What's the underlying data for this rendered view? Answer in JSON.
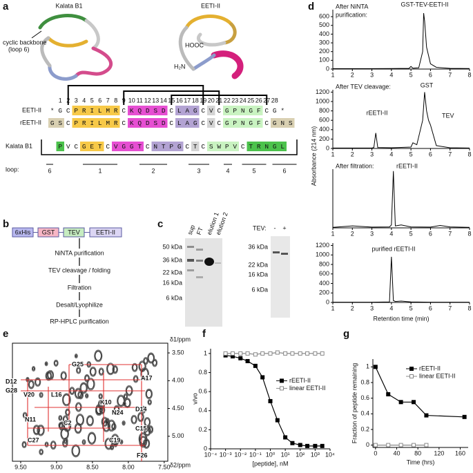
{
  "panel_labels": [
    "a",
    "b",
    "c",
    "d",
    "e",
    "f",
    "g"
  ],
  "structures": {
    "titles": [
      "Kalata B1",
      "EETI-II"
    ],
    "callout": [
      "cyclic backbone",
      "(loop 6)"
    ],
    "termini": [
      "HOOC",
      "H₂N"
    ]
  },
  "alignment": {
    "numbers": [
      1,
      2,
      3,
      4,
      5,
      6,
      7,
      8,
      9,
      10,
      11,
      12,
      13,
      14,
      15,
      16,
      17,
      18,
      19,
      20,
      21,
      22,
      23,
      24,
      25,
      26,
      27,
      28
    ],
    "rows": [
      {
        "name": "EETI-II",
        "segments": [
          "*",
          "G",
          "C",
          "PRILMR",
          "C",
          "KQDSD",
          "C",
          "LAG",
          "C",
          "V",
          "C",
          "GPNGF",
          "C",
          "G",
          "*"
        ],
        "colors": [
          "#ffffff",
          "#ffffff",
          "#ffffff",
          "#f7c948",
          "#ffffff",
          "#e64fd2",
          "#ffffff",
          "#b3a3d3",
          "#ffffff",
          "#d4d4d4",
          "#ffffff",
          "#c9f3c1",
          "#ffffff",
          "#ffffff",
          "#ffffff"
        ]
      },
      {
        "name": "rEETI-II",
        "segments": [
          "GS",
          "C",
          "PRILMR",
          "C",
          "KQDSD",
          "C",
          "LAG",
          "C",
          "V",
          "C",
          "GPNGF",
          "C",
          "GNS"
        ],
        "colors": [
          "#d9d0b2",
          "#ffffff",
          "#f7c948",
          "#ffffff",
          "#e64fd2",
          "#ffffff",
          "#b3a3d3",
          "#ffffff",
          "#d4d4d4",
          "#ffffff",
          "#c9f3c1",
          "#ffffff",
          "#d9d0b2"
        ]
      },
      {
        "name": "Kalata B1",
        "segments": [
          "P",
          "V",
          "C",
          "GET",
          "C",
          "VGGT",
          "C",
          "NTPG",
          "C",
          "T",
          "C",
          "SWPV",
          "C",
          "TRNGL"
        ],
        "colors": [
          "#4cc24c",
          "#ffffff",
          "#ffffff",
          "#f7c948",
          "#ffffff",
          "#e64fd2",
          "#ffffff",
          "#b3a3d3",
          "#ffffff",
          "#d4d4d4",
          "#ffffff",
          "#c9f3c1",
          "#ffffff",
          "#4cc24c"
        ]
      }
    ],
    "loop_label": "loop:",
    "loops": [
      "6",
      "1",
      "2",
      "3",
      "4",
      "5",
      "6"
    ]
  },
  "flow": {
    "constructs": [
      "6xHis",
      "GST",
      "TEV",
      "EETI-II"
    ],
    "steps": [
      "NiNTA purification",
      "TEV cleavage / folding",
      "Filtration",
      "Desalt/Lyophilize",
      "RP-HPLC purification"
    ]
  },
  "gels": {
    "gel1": {
      "lanes": [
        "sup",
        "FT",
        "elution 1",
        "elution 2"
      ],
      "markers": [
        "50 kDa",
        "36 kDa",
        "22 kDa",
        "16 kDa",
        "6 kDa"
      ]
    },
    "gel2": {
      "tev_label": "TEV:",
      "lanes": [
        "-",
        "+"
      ],
      "markers": [
        "36 kDa",
        "22 kDa",
        "16 kDa",
        "6 kDa"
      ]
    }
  },
  "panel_d": {
    "ylabel": "Absorbance (214 nm)",
    "xlabel": "Retention time (min)"
  },
  "panel_e": {
    "ylabel": "δ1/ppm",
    "xlabel": "δ2/ppm",
    "xlim": [
      9.615,
      7.45
    ],
    "ylim": [
      3.325,
      5.45
    ],
    "xticks": [
      {
        "value": 9.5,
        "label": "9.50"
      },
      {
        "value": 9.0,
        "label": "9.00"
      },
      {
        "value": 8.5,
        "label": "8.50"
      },
      {
        "value": 8.0,
        "label": "8.00"
      },
      {
        "value": 7.5,
        "label": "7.50"
      }
    ],
    "yticks": [
      {
        "value": 3.5,
        "label": "3.50"
      },
      {
        "value": 4.0,
        "label": "4.00"
      },
      {
        "value": 4.5,
        "label": "4.50"
      },
      {
        "value": 5.0,
        "label": "5.00"
      }
    ],
    "peak_labels": [
      "G25",
      "A17",
      "D12",
      "L16",
      "G28",
      "V20",
      "K10",
      "D14",
      "N24",
      "N11",
      "C2",
      "C15",
      "C27",
      "C19",
      "F26"
    ]
  },
  "chart_data": [
    {
      "type": "line",
      "annotations": [
        "After NiNTA",
        "purification:",
        "GST-TEV-EETI-II"
      ],
      "color": "#000000",
      "x": [
        1,
        2,
        3,
        4,
        4.9,
        5.0,
        5.1,
        5.4,
        5.6,
        5.65,
        5.7,
        5.8,
        6.0,
        6.3,
        7,
        8
      ],
      "values": [
        5,
        5,
        5,
        6,
        8,
        30,
        10,
        15,
        200,
        640,
        550,
        250,
        60,
        20,
        8,
        6
      ],
      "xlim": [
        1,
        8
      ],
      "xticks": [
        1,
        2,
        3,
        4,
        5,
        6,
        7,
        8
      ],
      "ylim": [
        0,
        680
      ],
      "yticks": [
        0,
        100,
        200,
        300,
        400,
        500,
        600
      ]
    },
    {
      "type": "line",
      "annotations": [
        "After TEV cleavage:",
        "GST",
        "TEV",
        "rEETI-II"
      ],
      "color": "#000000",
      "x": [
        1,
        2,
        3,
        3.1,
        3.2,
        3.3,
        4,
        5,
        5.1,
        5.3,
        5.6,
        5.7,
        5.8,
        5.9,
        6.0,
        6.3,
        7,
        8
      ],
      "values": [
        10,
        10,
        10,
        20,
        330,
        20,
        15,
        30,
        120,
        80,
        600,
        1200,
        800,
        600,
        500,
        60,
        15,
        10
      ],
      "xlim": [
        1,
        8
      ],
      "xticks": [
        1,
        2,
        3,
        4,
        5,
        6,
        7,
        8
      ],
      "ylim": [
        0,
        1250
      ],
      "yticks": [
        0,
        200,
        400,
        600,
        800,
        1000,
        1200
      ]
    },
    {
      "type": "line",
      "annotations": [
        "After filtration:",
        "rEETI-II"
      ],
      "color": "#000000",
      "x": [
        1,
        2,
        3,
        3.9,
        4.0,
        4.1,
        4.2,
        4.5,
        5,
        6,
        6.5,
        7,
        8
      ],
      "values": [
        5,
        20,
        8,
        10,
        30,
        580,
        20,
        30,
        10,
        8,
        25,
        10,
        5
      ],
      "xlim": [
        1,
        8
      ],
      "xticks": [
        1,
        2,
        3,
        4,
        5,
        6,
        7,
        8
      ],
      "ylim": [
        0,
        600
      ]
    },
    {
      "type": "line",
      "annotations": [
        "purified rEETI-II"
      ],
      "color": "#000000",
      "x": [
        1,
        2,
        3,
        3.9,
        4.0,
        4.1,
        4.2,
        4.5,
        5,
        6,
        7,
        8
      ],
      "values": [
        5,
        5,
        5,
        10,
        960,
        40,
        20,
        30,
        10,
        5,
        5,
        5
      ],
      "xlim": [
        1,
        8
      ],
      "xticks": [
        1,
        2,
        3,
        4,
        5,
        6,
        7,
        8
      ],
      "ylim": [
        0,
        1250
      ],
      "yticks": [
        0,
        200,
        400,
        600,
        800,
        1000,
        1200
      ]
    },
    {
      "type": "line",
      "xscale": "log",
      "xlabel": "[peptide], nM",
      "ylabel": "v/vo",
      "legend": "center right",
      "x": [
        0.001,
        0.003,
        0.01,
        0.03,
        0.1,
        0.3,
        1,
        3,
        10,
        30,
        100,
        300,
        1000,
        3000
      ],
      "series": [
        {
          "name": "rEETI-II",
          "color": "#000000",
          "marker": "square",
          "values": [
            0.98,
            0.97,
            0.95,
            0.92,
            0.87,
            0.75,
            0.5,
            0.3,
            0.12,
            0.06,
            0.04,
            0.03,
            0.03,
            0.03
          ]
        },
        {
          "name": "linear EETI-II",
          "color": "#888888",
          "marker": "square-open",
          "values": [
            1,
            1,
            1,
            1,
            0.99,
            1,
            1,
            1.01,
            1,
            1,
            1,
            1,
            1,
            1
          ]
        }
      ],
      "xlim": [
        0.0001,
        10000
      ],
      "xticks": [
        {
          "value": 0.0001,
          "label": "10⁻⁴"
        },
        {
          "value": 0.001,
          "label": "10⁻³"
        },
        {
          "value": 0.01,
          "label": "10⁻²"
        },
        {
          "value": 0.1,
          "label": "10⁻¹"
        },
        {
          "value": 1,
          "label": "10⁰"
        },
        {
          "value": 10,
          "label": "10¹"
        },
        {
          "value": 100,
          "label": "10²"
        },
        {
          "value": 1000,
          "label": "10³"
        },
        {
          "value": 10000,
          "label": "10⁴"
        }
      ],
      "ylim": [
        0,
        1.05
      ],
      "yticks": [
        0,
        0.2,
        0.4,
        0.6,
        0.8,
        1
      ]
    },
    {
      "type": "line",
      "xlabel": "Time (hrs)",
      "ylabel": "Fraction of peptide remaining",
      "legend": "upper right",
      "x": [
        0,
        24,
        48,
        72,
        96,
        168
      ],
      "series": [
        {
          "name": "rEETI-II",
          "color": "#000000",
          "marker": "square",
          "values": [
            1,
            0.65,
            0.55,
            0.55,
            0.38,
            0.36
          ]
        },
        {
          "name": "linear EETI-II",
          "color": "#888888",
          "marker": "square-open",
          "values": [
            0,
            0,
            0,
            0,
            0,
            null
          ]
        }
      ],
      "xlim": [
        -5,
        175
      ],
      "xticks": [
        0,
        40,
        80,
        120,
        160
      ],
      "ylim": [
        -0.03,
        1.1
      ],
      "yticks": [
        0,
        0.2,
        0.4,
        0.6,
        0.8,
        1
      ]
    }
  ]
}
